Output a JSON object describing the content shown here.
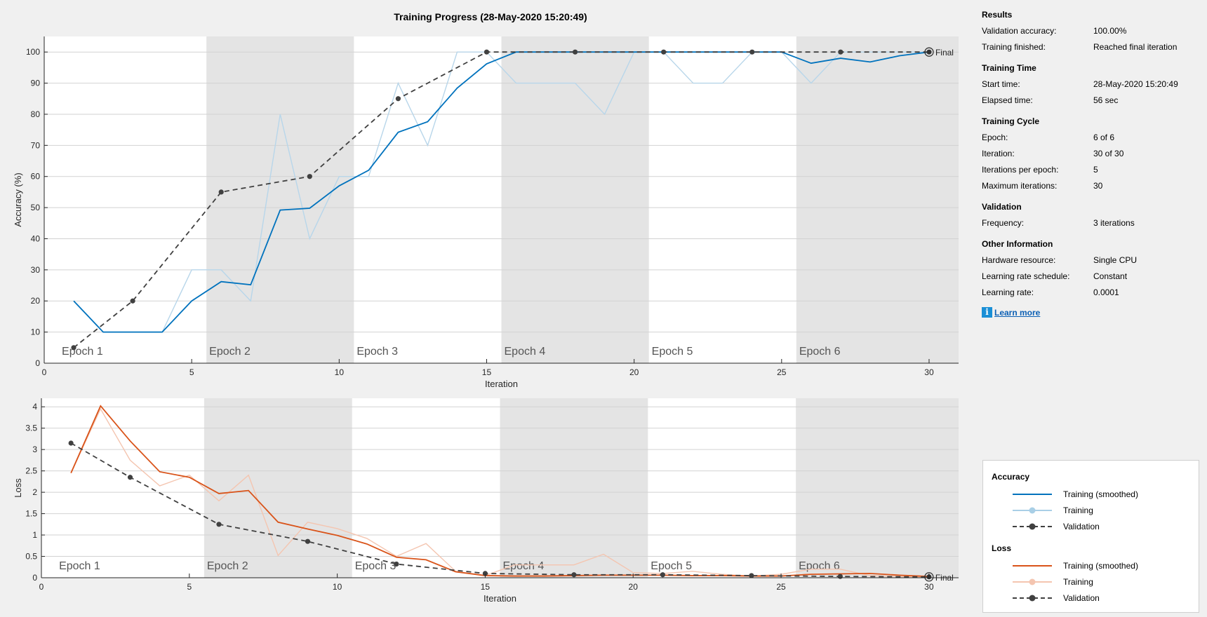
{
  "chart_data": [
    {
      "type": "line",
      "title": "Training Progress (28-May-2020 15:20:49)",
      "xlabel": "Iteration",
      "ylabel": "Accuracy (%)",
      "xlim": [
        0,
        31
      ],
      "ylim": [
        0,
        105
      ],
      "xticks": [
        0,
        5,
        10,
        15,
        20,
        25,
        30
      ],
      "yticks": [
        0,
        10,
        20,
        30,
        40,
        50,
        60,
        70,
        80,
        90,
        100
      ],
      "grid": true,
      "epochs": [
        {
          "label": "Epoch 1",
          "start": 0.5,
          "end": 5.5,
          "shaded": false
        },
        {
          "label": "Epoch 2",
          "start": 5.5,
          "end": 10.5,
          "shaded": true
        },
        {
          "label": "Epoch 3",
          "start": 10.5,
          "end": 15.5,
          "shaded": false
        },
        {
          "label": "Epoch 4",
          "start": 15.5,
          "end": 20.5,
          "shaded": true
        },
        {
          "label": "Epoch 5",
          "start": 20.5,
          "end": 25.5,
          "shaded": false
        },
        {
          "label": "Epoch 6",
          "start": 25.5,
          "end": 31,
          "shaded": true
        }
      ],
      "final_label": "Final",
      "series": [
        {
          "role": "training",
          "color": "#b8d6ea",
          "x": [
            1,
            2,
            3,
            4,
            5,
            6,
            7,
            8,
            9,
            10,
            11,
            12,
            13,
            14,
            15,
            16,
            17,
            18,
            19,
            20,
            21,
            22,
            23,
            24,
            25,
            26,
            27,
            28,
            29,
            30
          ],
          "values": [
            20,
            10,
            10,
            10,
            30,
            30,
            20,
            80,
            40,
            60,
            60,
            90,
            70,
            100,
            100,
            90,
            90,
            90,
            80,
            100,
            100,
            90,
            90,
            100,
            100,
            90,
            100,
            100,
            100,
            100
          ]
        },
        {
          "role": "smoothed",
          "color": "#0072bd",
          "x": [
            1,
            2,
            3,
            4,
            5,
            6,
            7,
            8,
            9,
            10,
            11,
            12,
            13,
            14,
            15,
            16,
            17,
            18,
            19,
            20,
            21,
            22,
            23,
            24,
            25,
            26,
            27,
            28,
            29,
            30
          ],
          "values": [
            20,
            10,
            10,
            10,
            20,
            26.2,
            25.2,
            49.2,
            49.8,
            57,
            62,
            74.2,
            77.6,
            88.4,
            96.2,
            100,
            100,
            100,
            100,
            100,
            100,
            100,
            100,
            100,
            100,
            96.4,
            98,
            96.8,
            98.8,
            100
          ]
        },
        {
          "role": "validation",
          "color": "#404040",
          "x": [
            1,
            3,
            6,
            9,
            12,
            15,
            18,
            21,
            24,
            27,
            30
          ],
          "values": [
            5,
            20,
            55,
            60,
            85,
            100,
            100,
            100,
            100,
            100,
            100
          ]
        }
      ]
    },
    {
      "type": "line",
      "xlabel": "Iteration",
      "ylabel": "Loss",
      "xlim": [
        0,
        31
      ],
      "ylim": [
        0,
        4.2
      ],
      "xticks": [
        0,
        5,
        10,
        15,
        20,
        25,
        30
      ],
      "yticks": [
        0,
        0.5,
        1,
        1.5,
        2,
        2.5,
        3,
        3.5,
        4
      ],
      "grid": true,
      "epochs": [
        {
          "label": "Epoch 1",
          "start": 0.5,
          "end": 5.5,
          "shaded": false
        },
        {
          "label": "Epoch 2",
          "start": 5.5,
          "end": 10.5,
          "shaded": true
        },
        {
          "label": "Epoch 3",
          "start": 10.5,
          "end": 15.5,
          "shaded": false
        },
        {
          "label": "Epoch 4",
          "start": 15.5,
          "end": 20.5,
          "shaded": true
        },
        {
          "label": "Epoch 5",
          "start": 20.5,
          "end": 25.5,
          "shaded": false
        },
        {
          "label": "Epoch 6",
          "start": 25.5,
          "end": 31,
          "shaded": true
        }
      ],
      "final_label": "Final",
      "series": [
        {
          "role": "training",
          "color": "#f4c5b0",
          "x": [
            1,
            2,
            3,
            4,
            5,
            6,
            7,
            8,
            9,
            10,
            11,
            12,
            13,
            14,
            15,
            16,
            17,
            18,
            19,
            20,
            21,
            22,
            23,
            24,
            25,
            26,
            27,
            28,
            29,
            30
          ],
          "values": [
            2.45,
            3.95,
            2.75,
            2.15,
            2.4,
            1.8,
            2.4,
            0.52,
            1.3,
            1.15,
            0.92,
            0.5,
            0.8,
            0.15,
            0.05,
            0.3,
            0.3,
            0.3,
            0.55,
            0.12,
            0.1,
            0.15,
            0.08,
            0.04,
            0.08,
            0.2,
            0.2,
            0.05,
            0.03,
            0.02
          ]
        },
        {
          "role": "smoothed",
          "color": "#d95319",
          "x": [
            1,
            2,
            3,
            4,
            5,
            6,
            7,
            8,
            9,
            10,
            11,
            12,
            13,
            14,
            15,
            16,
            17,
            18,
            19,
            20,
            21,
            22,
            23,
            24,
            25,
            26,
            27,
            28,
            29,
            30
          ],
          "values": [
            2.45,
            4.02,
            3.2,
            2.48,
            2.35,
            1.97,
            2.04,
            1.3,
            1.14,
            0.99,
            0.79,
            0.48,
            0.42,
            0.14,
            0.05,
            0.04,
            0.04,
            0.05,
            0.06,
            0.06,
            0.06,
            0.05,
            0.05,
            0.04,
            0.04,
            0.08,
            0.09,
            0.1,
            0.06,
            0.03
          ]
        },
        {
          "role": "validation",
          "color": "#404040",
          "x": [
            1,
            3,
            6,
            9,
            12,
            15,
            18,
            21,
            24,
            27,
            30
          ],
          "values": [
            3.15,
            2.35,
            1.25,
            0.85,
            0.32,
            0.1,
            0.07,
            0.07,
            0.05,
            0.03,
            0.02
          ]
        }
      ]
    }
  ],
  "info": {
    "sections": [
      {
        "title": "Results",
        "rows": [
          {
            "label": "Validation accuracy:",
            "value": "100.00%"
          },
          {
            "label": "Training finished:",
            "value": "Reached final iteration"
          }
        ]
      },
      {
        "title": "Training Time",
        "rows": [
          {
            "label": "Start time:",
            "value": "28-May-2020 15:20:49"
          },
          {
            "label": "Elapsed time:",
            "value": "56 sec"
          }
        ]
      },
      {
        "title": "Training Cycle",
        "rows": [
          {
            "label": "Epoch:",
            "value": "6 of 6"
          },
          {
            "label": "Iteration:",
            "value": "30 of 30"
          },
          {
            "label": "Iterations per epoch:",
            "value": "5"
          },
          {
            "label": "Maximum iterations:",
            "value": "30"
          }
        ]
      },
      {
        "title": "Validation",
        "rows": [
          {
            "label": "Frequency:",
            "value": "3 iterations"
          }
        ]
      },
      {
        "title": "Other Information",
        "rows": [
          {
            "label": "Hardware resource:",
            "value": "Single CPU"
          },
          {
            "label": "Learning rate schedule:",
            "value": "Constant"
          },
          {
            "label": "Learning rate:",
            "value": "0.0001"
          }
        ]
      }
    ],
    "learn_more": "Learn more",
    "learn_more_icon": "info-icon"
  },
  "legend": {
    "accuracy_title": "Accuracy",
    "loss_title": "Loss",
    "accuracy_items": [
      {
        "label": "Training (smoothed)",
        "color": "#0072bd",
        "style": "solid"
      },
      {
        "label": "Training",
        "color": "#a9cfe6",
        "style": "marker"
      },
      {
        "label": "Validation",
        "color": "#404040",
        "style": "dashed"
      }
    ],
    "loss_items": [
      {
        "label": "Training (smoothed)",
        "color": "#d95319",
        "style": "solid"
      },
      {
        "label": "Training",
        "color": "#f4c5b0",
        "style": "marker"
      },
      {
        "label": "Validation",
        "color": "#404040",
        "style": "dashed"
      }
    ]
  }
}
